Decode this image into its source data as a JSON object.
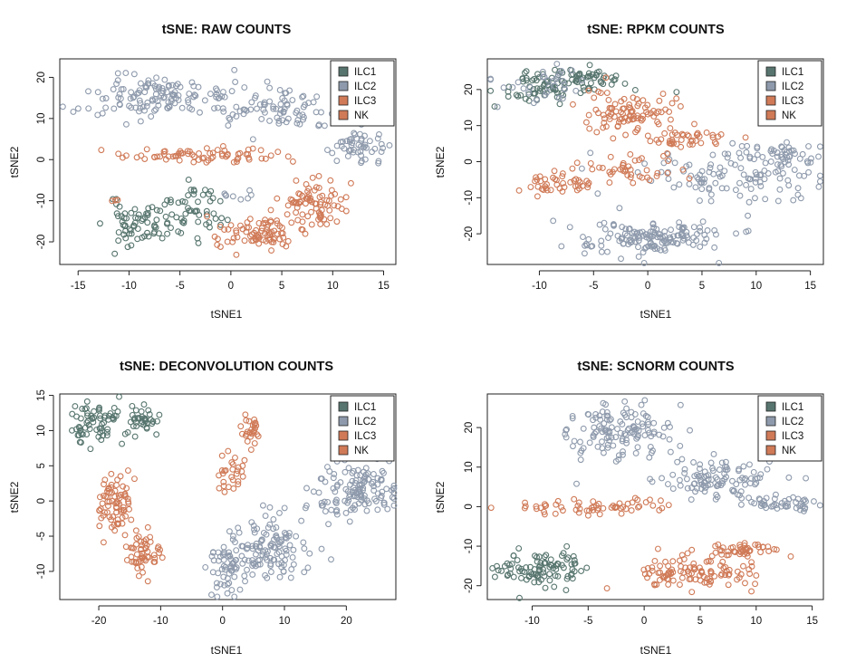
{
  "colors": {
    "ILC1": "#57756e",
    "ILC2": "#8e9aac",
    "ILC3": "#d07a57",
    "NK": "#d07a57"
  },
  "chart_data": [
    {
      "type": "scatter",
      "title": "tSNE: RAW COUNTS",
      "xlabel": "tSNE1",
      "ylabel": "tSNE2",
      "xlim": [
        -16.8,
        16.2
      ],
      "ylim": [
        -25.5,
        24.5
      ],
      "xticks": [
        -15,
        -10,
        -5,
        0,
        5,
        10,
        15
      ],
      "yticks": [
        -20,
        -10,
        0,
        10,
        20
      ],
      "legend": {
        "position": "top-right",
        "entries": [
          "ILC1",
          "ILC2",
          "ILC3",
          "NK"
        ]
      },
      "clusters": [
        {
          "label": "ILC1",
          "cx": -9.3,
          "cy": -15.5,
          "sx": 1.5,
          "sy": 2.6,
          "n": 60,
          "seed": 11
        },
        {
          "label": "ILC1",
          "cx": -4.0,
          "cy": -12.5,
          "sx": 1.6,
          "sy": 3.2,
          "n": 55,
          "seed": 12
        },
        {
          "label": "ILC2",
          "cx": -8.5,
          "cy": 15.5,
          "sx": 3.8,
          "sy": 2.5,
          "n": 120,
          "seed": 13
        },
        {
          "label": "ILC2",
          "cx": 4.5,
          "cy": 12.5,
          "sx": 3.5,
          "sy": 2.8,
          "n": 90,
          "seed": 14
        },
        {
          "label": "ILC2",
          "cx": 12.5,
          "cy": 3.0,
          "sx": 1.5,
          "sy": 2.6,
          "n": 50,
          "seed": 15
        },
        {
          "label": "ILC2",
          "cx": 0.5,
          "cy": -9.0,
          "sx": 0.8,
          "sy": 1.2,
          "n": 8,
          "seed": 16
        },
        {
          "label": "ILC3",
          "cx": -3.0,
          "cy": 1.0,
          "sx": 4.0,
          "sy": 1.1,
          "n": 70,
          "seed": 17
        },
        {
          "label": "NK",
          "cx": 3.0,
          "cy": -18.0,
          "sx": 2.3,
          "sy": 2.0,
          "n": 85,
          "seed": 18
        },
        {
          "label": "NK",
          "cx": 8.0,
          "cy": -10.5,
          "sx": 1.6,
          "sy": 2.5,
          "n": 75,
          "seed": 19
        },
        {
          "label": "NK",
          "cx": -11.5,
          "cy": -10.0,
          "sx": 0.3,
          "sy": 0.2,
          "n": 3,
          "seed": 20
        }
      ]
    },
    {
      "type": "scatter",
      "title": "tSNE: RPKM COUNTS",
      "xlabel": "tSNE1",
      "ylabel": "tSNE2",
      "xlim": [
        -14.8,
        16.2
      ],
      "ylim": [
        -28.5,
        28.5
      ],
      "xticks": [
        -10,
        -5,
        0,
        5,
        10,
        15
      ],
      "yticks": [
        -20,
        -10,
        0,
        10,
        20
      ],
      "legend": {
        "position": "top-right",
        "entries": [
          "ILC1",
          "ILC2",
          "ILC3",
          "NK"
        ]
      },
      "clusters": [
        {
          "label": "ILC1",
          "cx": -10.0,
          "cy": 20.5,
          "sx": 1.6,
          "sy": 2.2,
          "n": 60,
          "seed": 31
        },
        {
          "label": "ILC1",
          "cx": -5.5,
          "cy": 23.0,
          "sx": 2.2,
          "sy": 1.6,
          "n": 55,
          "seed": 32
        },
        {
          "label": "ILC2",
          "cx": -9.5,
          "cy": 21.0,
          "sx": 2.5,
          "sy": 2.5,
          "n": 35,
          "seed": 33
        },
        {
          "label": "ILC2",
          "cx": 0.0,
          "cy": -21.0,
          "sx": 3.6,
          "sy": 2.5,
          "n": 150,
          "seed": 34
        },
        {
          "label": "ILC2",
          "cx": 8.0,
          "cy": -4.0,
          "sx": 4.5,
          "sy": 3.5,
          "n": 110,
          "seed": 35
        },
        {
          "label": "ILC2",
          "cx": 12.5,
          "cy": 1.5,
          "sx": 2.0,
          "sy": 1.6,
          "n": 40,
          "seed": 36
        },
        {
          "label": "ILC3",
          "cx": -1.5,
          "cy": 14.0,
          "sx": 2.0,
          "sy": 3.0,
          "n": 90,
          "seed": 37
        },
        {
          "label": "ILC3",
          "cx": 3.5,
          "cy": 6.5,
          "sx": 2.3,
          "sy": 1.4,
          "n": 45,
          "seed": 38
        },
        {
          "label": "NK",
          "cx": -8.5,
          "cy": -6.5,
          "sx": 2.0,
          "sy": 1.3,
          "n": 40,
          "seed": 39
        },
        {
          "label": "NK",
          "cx": -2.5,
          "cy": -1.5,
          "sx": 2.5,
          "sy": 2.2,
          "n": 45,
          "seed": 40
        }
      ]
    },
    {
      "type": "scatter",
      "title": "tSNE: DECONVOLUTION COUNTS",
      "xlabel": "tSNE1",
      "ylabel": "tSNE2",
      "xlim": [
        -26.3,
        28.0
      ],
      "ylim": [
        -14.0,
        15.2
      ],
      "xticks": [
        -20,
        -10,
        0,
        10,
        20
      ],
      "yticks": [
        -10,
        -5,
        0,
        5,
        10,
        15
      ],
      "legend": {
        "position": "top-right",
        "entries": [
          "ILC1",
          "ILC2",
          "ILC3",
          "NK"
        ]
      },
      "clusters": [
        {
          "label": "ILC1",
          "cx": -20.8,
          "cy": 11.0,
          "sx": 2.2,
          "sy": 1.5,
          "n": 70,
          "seed": 51
        },
        {
          "label": "ILC1",
          "cx": -12.5,
          "cy": 11.5,
          "sx": 1.3,
          "sy": 1.2,
          "n": 35,
          "seed": 52
        },
        {
          "label": "ILC2",
          "cx": 0.5,
          "cy": -10.0,
          "sx": 1.5,
          "sy": 1.8,
          "n": 55,
          "seed": 53
        },
        {
          "label": "ILC2",
          "cx": 7.5,
          "cy": -7.0,
          "sx": 3.2,
          "sy": 2.3,
          "n": 120,
          "seed": 54
        },
        {
          "label": "ILC2",
          "cx": 21.5,
          "cy": 1.5,
          "sx": 3.3,
          "sy": 2.0,
          "n": 130,
          "seed": 55
        },
        {
          "label": "ILC3",
          "cx": 4.5,
          "cy": 9.8,
          "sx": 0.7,
          "sy": 1.2,
          "n": 28,
          "seed": 56
        },
        {
          "label": "ILC3",
          "cx": 1.5,
          "cy": 3.8,
          "sx": 1.2,
          "sy": 1.5,
          "n": 28,
          "seed": 57
        },
        {
          "label": "NK",
          "cx": -17.5,
          "cy": -0.5,
          "sx": 1.6,
          "sy": 2.3,
          "n": 75,
          "seed": 58
        },
        {
          "label": "NK",
          "cx": -12.5,
          "cy": -7.5,
          "sx": 1.4,
          "sy": 1.5,
          "n": 55,
          "seed": 59
        }
      ]
    },
    {
      "type": "scatter",
      "title": "tSNE: SCNORM COUNTS",
      "xlabel": "tSNE1",
      "ylabel": "tSNE2",
      "xlim": [
        -14.0,
        16.0
      ],
      "ylim": [
        -23.5,
        28.5
      ],
      "xticks": [
        -10,
        -5,
        0,
        5,
        10,
        15
      ],
      "yticks": [
        -20,
        -10,
        0,
        10,
        20
      ],
      "legend": {
        "position": "top-right",
        "entries": [
          "ILC1",
          "ILC2",
          "ILC3",
          "NK"
        ]
      },
      "clusters": [
        {
          "label": "ILC1",
          "cx": -10.5,
          "cy": -16.0,
          "sx": 1.6,
          "sy": 2.4,
          "n": 60,
          "seed": 71
        },
        {
          "label": "ILC1",
          "cx": -7.5,
          "cy": -15.5,
          "sx": 1.2,
          "sy": 2.5,
          "n": 35,
          "seed": 72
        },
        {
          "label": "ILC2",
          "cx": -2.0,
          "cy": 19.0,
          "sx": 2.6,
          "sy": 3.5,
          "n": 130,
          "seed": 73
        },
        {
          "label": "ILC2",
          "cx": 6.0,
          "cy": 7.0,
          "sx": 2.8,
          "sy": 2.3,
          "n": 100,
          "seed": 74
        },
        {
          "label": "ILC2",
          "cx": 12.0,
          "cy": 0.8,
          "sx": 1.5,
          "sy": 1.0,
          "n": 45,
          "seed": 75
        },
        {
          "label": "ILC3",
          "cx": -5.0,
          "cy": 0.0,
          "sx": 3.5,
          "sy": 1.0,
          "n": 60,
          "seed": 76
        },
        {
          "label": "NK",
          "cx": 4.5,
          "cy": -16.5,
          "sx": 3.0,
          "sy": 2.3,
          "n": 110,
          "seed": 77
        },
        {
          "label": "NK",
          "cx": 9.0,
          "cy": -11.0,
          "sx": 1.3,
          "sy": 1.0,
          "n": 40,
          "seed": 78
        }
      ]
    }
  ]
}
